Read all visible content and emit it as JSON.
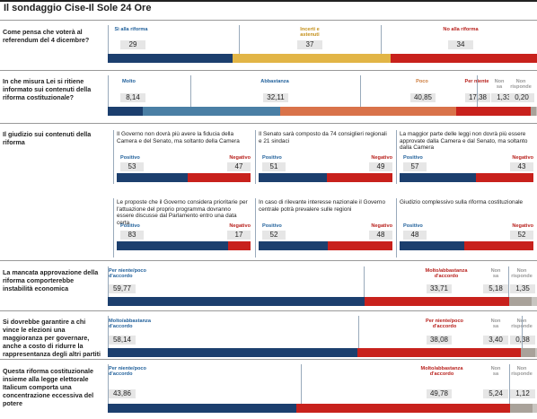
{
  "title": "Il sondaggio Cise-Il Sole 24 Ore",
  "colors": {
    "blue": "#1c3f6e",
    "yellow": "#e2b546",
    "red": "#c8211c",
    "midblue": "#4a7fa5",
    "orange": "#d9734a",
    "grey": "#a9a29a",
    "lightgrey": "#c8c5c0",
    "textblue": "#1f5f9a",
    "textyellow": "#c4901a",
    "textred": "#b8201c",
    "textorange": "#cc7a3a",
    "textgrey": "#999"
  },
  "chart_data": [
    {
      "type": "bar",
      "stacked": true,
      "question": "Come pensa che voterà al referendum del 4 dicembre?",
      "categories": [
        "Sì alla riforma",
        "Incerti e astenuti",
        "No alla riforma"
      ],
      "values": [
        29,
        37,
        34
      ],
      "labels": [
        "29",
        "37",
        "34"
      ]
    },
    {
      "type": "bar",
      "stacked": true,
      "question": "In che misura Lei si ritiene informato sui contenuti della riforma costituzionale?",
      "categories": [
        "Molto",
        "Abbastanza",
        "Poco",
        "Per niente",
        "Non sa",
        "Non risponde"
      ],
      "values": [
        8.14,
        32.11,
        40.85,
        17.38,
        1.33,
        0.2
      ],
      "labels": [
        "8,14",
        "32,11",
        "40,85",
        "17,38",
        "1,33",
        "0,20"
      ]
    },
    {
      "type": "bar",
      "stacked": true,
      "section": "Il giudizio sui contenuti della riforma",
      "panels": [
        {
          "title": "Il Governo non dovrà più avere la fiducia della Camera e del Senato, ma soltanto della Camera",
          "categories": [
            "Positivo",
            "Negativo"
          ],
          "values": [
            53,
            47
          ],
          "labels": [
            "53",
            "47"
          ]
        },
        {
          "title": "Il Senato sarà composto da 74 consiglieri regionali e 21 sindaci",
          "categories": [
            "Positivo",
            "Negativo"
          ],
          "values": [
            51,
            49
          ],
          "labels": [
            "51",
            "49"
          ]
        },
        {
          "title": "La maggior parte delle leggi non dovrà più essere approvate dalla Camera e dal Senato, ma soltanto dalla Camera",
          "categories": [
            "Positivo",
            "Negativo"
          ],
          "values": [
            57,
            43
          ],
          "labels": [
            "57",
            "43"
          ]
        },
        {
          "title": "Le proposte che il Governo considera prioritarie per l'attuazione del proprio programma dovranno essere discusse dal Parlamento entro una data certa",
          "categories": [
            "Positivo",
            "Negativo"
          ],
          "values": [
            83,
            17
          ],
          "labels": [
            "83",
            "17"
          ]
        },
        {
          "title": "In caso di rilevante interesse nazionale il Governo centrale potrà prevalere sulle regioni",
          "categories": [
            "Positivo",
            "Negativo"
          ],
          "values": [
            52,
            48
          ],
          "labels": [
            "52",
            "48"
          ]
        },
        {
          "title": "Giudizio complessivo sulla riforma costituzionale",
          "categories": [
            "Positivo",
            "Negativo"
          ],
          "values": [
            48,
            52
          ],
          "labels": [
            "48",
            "52"
          ]
        }
      ]
    },
    {
      "type": "bar",
      "stacked": true,
      "question": "La mancata approvazione della riforma comporterebbe instabilità economica",
      "categories": [
        "Per niente/poco d'accordo",
        "Molto/abbastanza d'accordo",
        "Non sa",
        "Non risponde"
      ],
      "values": [
        59.77,
        33.71,
        5.18,
        1.35
      ],
      "labels": [
        "59,77",
        "33,71",
        "5,18",
        "1,35"
      ]
    },
    {
      "type": "bar",
      "stacked": true,
      "question": "Si dovrebbe garantire a chi vince le elezioni una maggioranza per governare, anche a costo di ridurre la rappresentanza degli altri partiti",
      "categories": [
        "Molto/abbastanza d'accordo",
        "Per niente/poco d'accordo",
        "Non sa",
        "Non risponde"
      ],
      "values": [
        58.14,
        38.08,
        3.4,
        0.38
      ],
      "labels": [
        "58,14",
        "38,08",
        "3,40",
        "0,38"
      ]
    },
    {
      "type": "bar",
      "stacked": true,
      "question": "Questa riforma costituzionale insieme alla legge elettorale Italicum comporta una concentrazione eccessiva del potere",
      "categories": [
        "Per niente/poco d'accordo",
        "Molto/abbastanza d'accordo",
        "Non sa",
        "Non risponde"
      ],
      "values": [
        43.86,
        49.78,
        5.24,
        1.12
      ],
      "labels": [
        "43,86",
        "49,78",
        "5,24",
        "1,12"
      ]
    }
  ],
  "texts": {
    "q1": "Come pensa che voterà al referendum del 4 dicembre?",
    "q2": "In che misura Lei si ritiene informato sui contenuti della riforma costituzionale?",
    "q3": "Il giudizio sui contenuti della riforma",
    "q4": "La mancata approvazione della riforma comporterebbe instabilità economica",
    "q5": "Si dovrebbe garantire a chi vince le elezioni una maggioranza per governare, anche a costo di ridurre la rappresentanza degli altri partiti",
    "q6": "Questa riforma costituzionale insieme alla legge elettorale Italicum comporta una concentrazione eccessiva del potere"
  }
}
